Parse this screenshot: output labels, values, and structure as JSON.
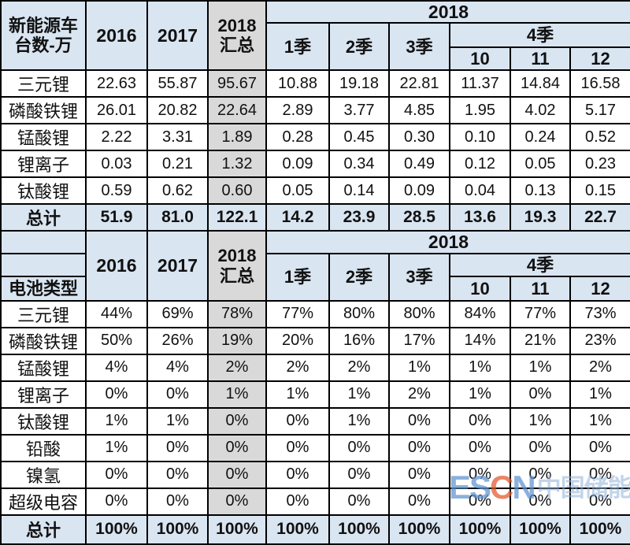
{
  "colors": {
    "header_blue": "#d9e5f1",
    "summary_gray": "#d9d9d9",
    "border": "#000000",
    "watermark_blue": "#5f93cf",
    "watermark_orange": "#e2572b"
  },
  "watermark": {
    "logo_prefix": "ES",
    "logo_c": "C",
    "logo_suffix": "N",
    "site_name": "中国储能网"
  },
  "chart_data": [
    {
      "type": "table",
      "title": "新能源车台数-万",
      "corner_label_lines": [
        "新能源车",
        "台数-万"
      ],
      "header": {
        "col_2016": "2016",
        "col_2017": "2017",
        "col_2018_total_lines": [
          "2018",
          "汇总"
        ],
        "year_group": "2018",
        "q1": "1季",
        "q2": "2季",
        "q3": "3季",
        "q4": "4季",
        "m10": "10",
        "m11": "11",
        "m12": "12"
      },
      "columns": [
        "2016",
        "2017",
        "2018汇总",
        "2018 1季",
        "2018 2季",
        "2018 3季",
        "2018 10月",
        "2018 11月",
        "2018 12月"
      ],
      "rows": [
        {
          "label": "三元锂",
          "values": [
            "22.63",
            "55.87",
            "95.67",
            "10.88",
            "19.18",
            "22.81",
            "11.37",
            "14.84",
            "16.58"
          ]
        },
        {
          "label": "磷酸铁锂",
          "values": [
            "26.01",
            "20.82",
            "22.64",
            "2.89",
            "3.77",
            "4.85",
            "1.95",
            "4.02",
            "5.17"
          ]
        },
        {
          "label": "锰酸锂",
          "values": [
            "2.22",
            "3.31",
            "1.89",
            "0.28",
            "0.45",
            "0.30",
            "0.10",
            "0.24",
            "0.52"
          ]
        },
        {
          "label": "锂离子",
          "values": [
            "0.03",
            "0.21",
            "1.32",
            "0.09",
            "0.34",
            "0.49",
            "0.12",
            "0.05",
            "0.23"
          ]
        },
        {
          "label": "钛酸锂",
          "values": [
            "0.59",
            "0.62",
            "0.60",
            "0.05",
            "0.14",
            "0.09",
            "0.04",
            "0.13",
            "0.15"
          ]
        }
      ],
      "total_row": {
        "label": "总计",
        "values": [
          "51.9",
          "81.0",
          "122.1",
          "14.2",
          "23.9",
          "28.5",
          "13.6",
          "19.3",
          "22.7"
        ]
      }
    },
    {
      "type": "table",
      "title": "电池类型",
      "corner_bottom_label": "电池类型",
      "header": {
        "col_2016": "2016",
        "col_2017": "2017",
        "col_2018_total_lines": [
          "2018",
          "汇总"
        ],
        "year_group": "2018",
        "q1": "1季",
        "q2": "2季",
        "q3": "3季",
        "q4": "4季",
        "m10": "10",
        "m11": "11",
        "m12": "12"
      },
      "columns": [
        "2016",
        "2017",
        "2018汇总",
        "2018 1季",
        "2018 2季",
        "2018 3季",
        "2018 10月",
        "2018 11月",
        "2018 12月"
      ],
      "rows": [
        {
          "label": "三元锂",
          "values": [
            "44%",
            "69%",
            "78%",
            "77%",
            "80%",
            "80%",
            "84%",
            "77%",
            "73%"
          ]
        },
        {
          "label": "磷酸铁锂",
          "values": [
            "50%",
            "26%",
            "19%",
            "20%",
            "16%",
            "17%",
            "14%",
            "21%",
            "23%"
          ]
        },
        {
          "label": "锰酸锂",
          "values": [
            "4%",
            "4%",
            "2%",
            "2%",
            "2%",
            "1%",
            "1%",
            "1%",
            "2%"
          ]
        },
        {
          "label": "锂离子",
          "values": [
            "0%",
            "0%",
            "1%",
            "1%",
            "1%",
            "2%",
            "1%",
            "0%",
            "1%"
          ]
        },
        {
          "label": "钛酸锂",
          "values": [
            "1%",
            "1%",
            "0%",
            "0%",
            "1%",
            "0%",
            "0%",
            "1%",
            "1%"
          ]
        },
        {
          "label": "铅酸",
          "values": [
            "1%",
            "0%",
            "0%",
            "0%",
            "0%",
            "0%",
            "0%",
            "0%",
            "0%"
          ]
        },
        {
          "label": "镍氢",
          "values": [
            "0%",
            "0%",
            "0%",
            "0%",
            "0%",
            "0%",
            "0%",
            "0%",
            "0%"
          ]
        },
        {
          "label": "超级电容",
          "values": [
            "0%",
            "0%",
            "0%",
            "0%",
            "0%",
            "0%",
            "0%",
            "0%",
            "0%"
          ]
        }
      ],
      "total_row": {
        "label": "总计",
        "values": [
          "100%",
          "100%",
          "100%",
          "100%",
          "100%",
          "100%",
          "100%",
          "100%",
          "100%"
        ]
      }
    }
  ]
}
